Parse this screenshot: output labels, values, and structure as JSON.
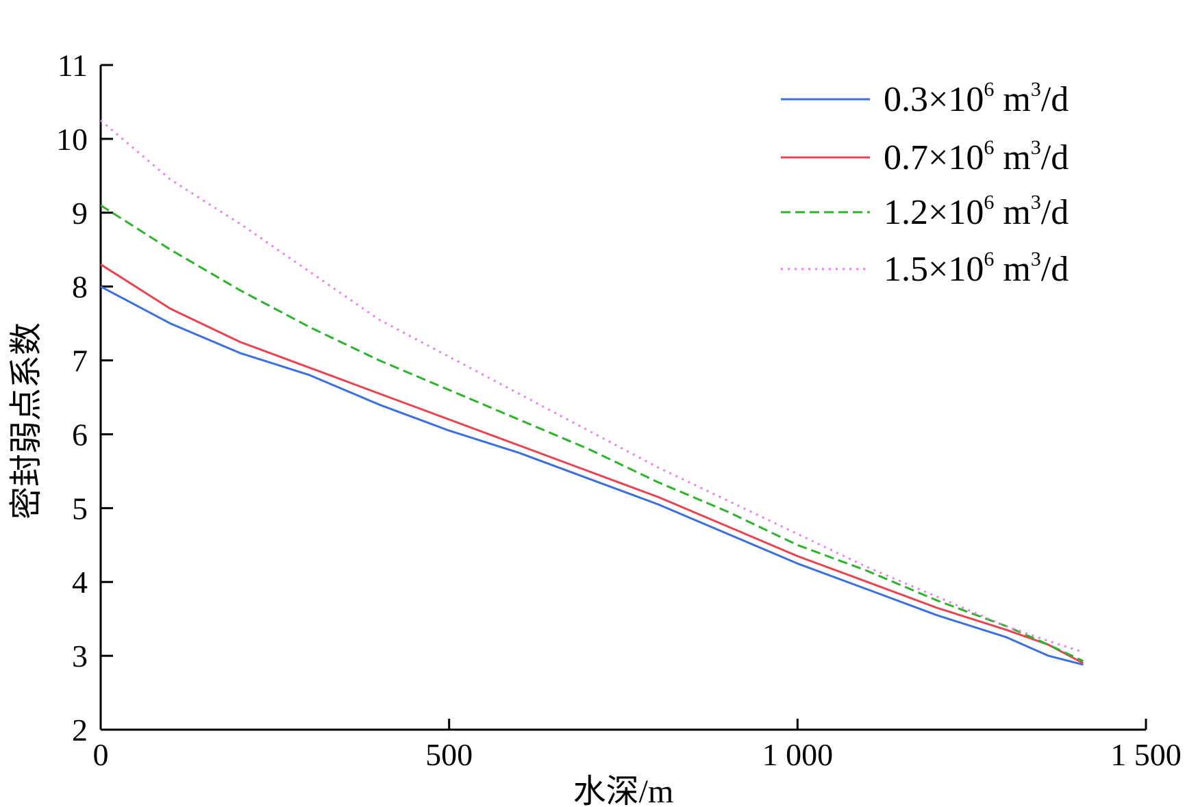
{
  "chart_data": {
    "type": "line",
    "xlabel": "水深/m",
    "ylabel": "密封弱点系数",
    "xlim": [
      0,
      1500
    ],
    "ylim": [
      2,
      11
    ],
    "x_ticks": [
      {
        "value": 0,
        "label": "0"
      },
      {
        "value": 500,
        "label": "500"
      },
      {
        "value": 1000,
        "label": "1 000"
      },
      {
        "value": 1500,
        "label": "1 500"
      }
    ],
    "y_ticks": [
      {
        "value": 2,
        "label": "2"
      },
      {
        "value": 3,
        "label": "3"
      },
      {
        "value": 4,
        "label": "4"
      },
      {
        "value": 5,
        "label": "5"
      },
      {
        "value": 6,
        "label": "6"
      },
      {
        "value": 7,
        "label": "7"
      },
      {
        "value": 8,
        "label": "8"
      },
      {
        "value": 9,
        "label": "9"
      },
      {
        "value": 10,
        "label": "10"
      },
      {
        "value": 11,
        "label": "11"
      }
    ],
    "grid": false,
    "legend_position": "top-right",
    "series": [
      {
        "name": "0.3×10⁶ m³/d",
        "legend": {
          "prefix": "0.3×10",
          "sup1": "6",
          "mid": " m",
          "sup2": "3",
          "suffix": "/d"
        },
        "color": "#3a6fe0",
        "dash": "solid",
        "x": [
          0,
          100,
          200,
          300,
          400,
          500,
          600,
          700,
          800,
          900,
          1000,
          1100,
          1200,
          1300,
          1360,
          1410
        ],
        "y": [
          8.0,
          7.5,
          7.1,
          6.8,
          6.4,
          6.05,
          5.75,
          5.4,
          5.05,
          4.65,
          4.25,
          3.9,
          3.55,
          3.25,
          3.0,
          2.88
        ]
      },
      {
        "name": "0.7×10⁶ m³/d",
        "legend": {
          "prefix": "0.7×10",
          "sup1": "6",
          "mid": " m",
          "sup2": "3",
          "suffix": "/d"
        },
        "color": "#e8434f",
        "dash": "solid",
        "x": [
          0,
          100,
          200,
          300,
          400,
          500,
          600,
          700,
          800,
          900,
          1000,
          1100,
          1200,
          1300,
          1360,
          1410
        ],
        "y": [
          8.3,
          7.7,
          7.25,
          6.9,
          6.55,
          6.2,
          5.85,
          5.5,
          5.15,
          4.75,
          4.35,
          4.0,
          3.65,
          3.35,
          3.15,
          2.9
        ]
      },
      {
        "name": "1.2×10⁶ m³/d",
        "legend": {
          "prefix": "1.2×10",
          "sup1": "6",
          "mid": " m",
          "sup2": "3",
          "suffix": "/d"
        },
        "color": "#2bb32b",
        "dash": "dashed",
        "x": [
          0,
          100,
          200,
          300,
          400,
          500,
          600,
          700,
          800,
          900,
          1000,
          1100,
          1200,
          1300,
          1360,
          1410
        ],
        "y": [
          9.1,
          8.5,
          7.95,
          7.45,
          7.0,
          6.6,
          6.2,
          5.8,
          5.35,
          4.95,
          4.5,
          4.15,
          3.75,
          3.4,
          3.15,
          2.93
        ]
      },
      {
        "name": "1.5×10⁶ m³/d",
        "legend": {
          "prefix": "1.5×10",
          "sup1": "6",
          "mid": " m",
          "sup2": "3",
          "suffix": "/d"
        },
        "color": "#e87ff0",
        "dash": "dotted",
        "x": [
          0,
          100,
          200,
          300,
          400,
          500,
          600,
          700,
          800,
          900,
          1000,
          1100,
          1200,
          1300,
          1360,
          1410
        ],
        "y": [
          10.25,
          9.45,
          8.85,
          8.2,
          7.55,
          7.05,
          6.55,
          6.05,
          5.55,
          5.1,
          4.65,
          4.2,
          3.8,
          3.4,
          3.2,
          3.05
        ]
      }
    ]
  }
}
